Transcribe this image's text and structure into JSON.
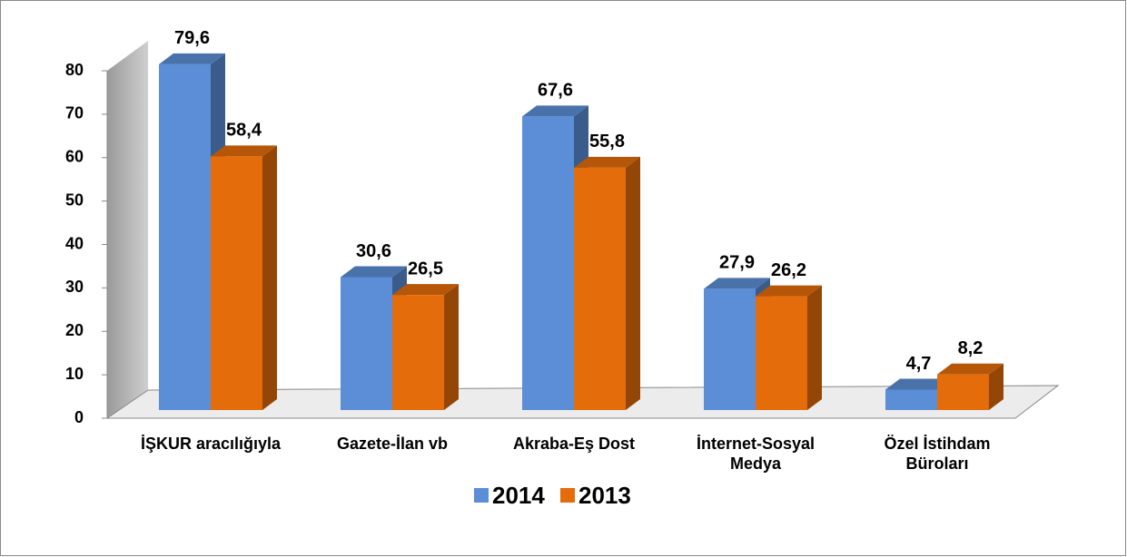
{
  "chart_data": {
    "type": "bar3d",
    "categories": [
      "İŞKUR aracılığıyla",
      "Gazete-İlan vb",
      "Akraba-Eş Dost",
      "İnternet-Sosyal Medya",
      "Özel İstihdam Büroları"
    ],
    "series": [
      {
        "name": "2014",
        "color": "#5b8ed6",
        "values": [
          79.6,
          30.6,
          67.6,
          27.9,
          4.7
        ],
        "value_labels": [
          "79,6",
          "30,6",
          "67,6",
          "27,9",
          "4,7"
        ]
      },
      {
        "name": "2013",
        "color": "#e46c0a",
        "values": [
          58.4,
          26.5,
          55.8,
          26.2,
          8.2
        ],
        "value_labels": [
          "58,4",
          "26,5",
          "55,8",
          "26,2",
          "8,2"
        ]
      }
    ],
    "ylim": [
      0,
      80
    ],
    "yticks": [
      0,
      10,
      20,
      30,
      40,
      50,
      60,
      70,
      80
    ],
    "legend": "bottom"
  }
}
